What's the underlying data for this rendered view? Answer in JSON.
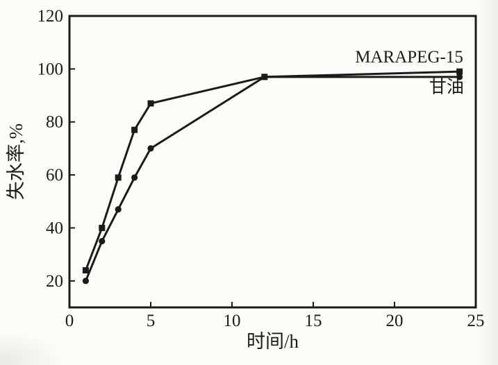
{
  "figure": {
    "background": "#fcfcfa",
    "ink_color": "#1b1b1b"
  },
  "chart_data": {
    "type": "line",
    "title": "",
    "xlabel": "时间/h",
    "ylabel": "失水率,%",
    "xlim": [
      0,
      25
    ],
    "ylim": [
      10,
      120
    ],
    "x_ticks": [
      0,
      5,
      10,
      15,
      20,
      25
    ],
    "y_ticks": [
      20,
      40,
      60,
      80,
      100,
      120
    ],
    "grid": false,
    "legend_position": "inline-annotations",
    "x": [
      1,
      2,
      3,
      4,
      5,
      12,
      24
    ],
    "series": [
      {
        "name": "甘油",
        "marker": "circle",
        "values": [
          20,
          35,
          47,
          59,
          70,
          97,
          97
        ],
        "label_anchor": {
          "x": 23.2,
          "y": 91.0
        }
      },
      {
        "name": "MARAPEG-15",
        "marker": "square",
        "values": [
          24,
          40,
          59,
          77,
          87,
          97,
          99
        ],
        "label_anchor": {
          "x": 20.9,
          "y": 102.5
        }
      }
    ]
  }
}
